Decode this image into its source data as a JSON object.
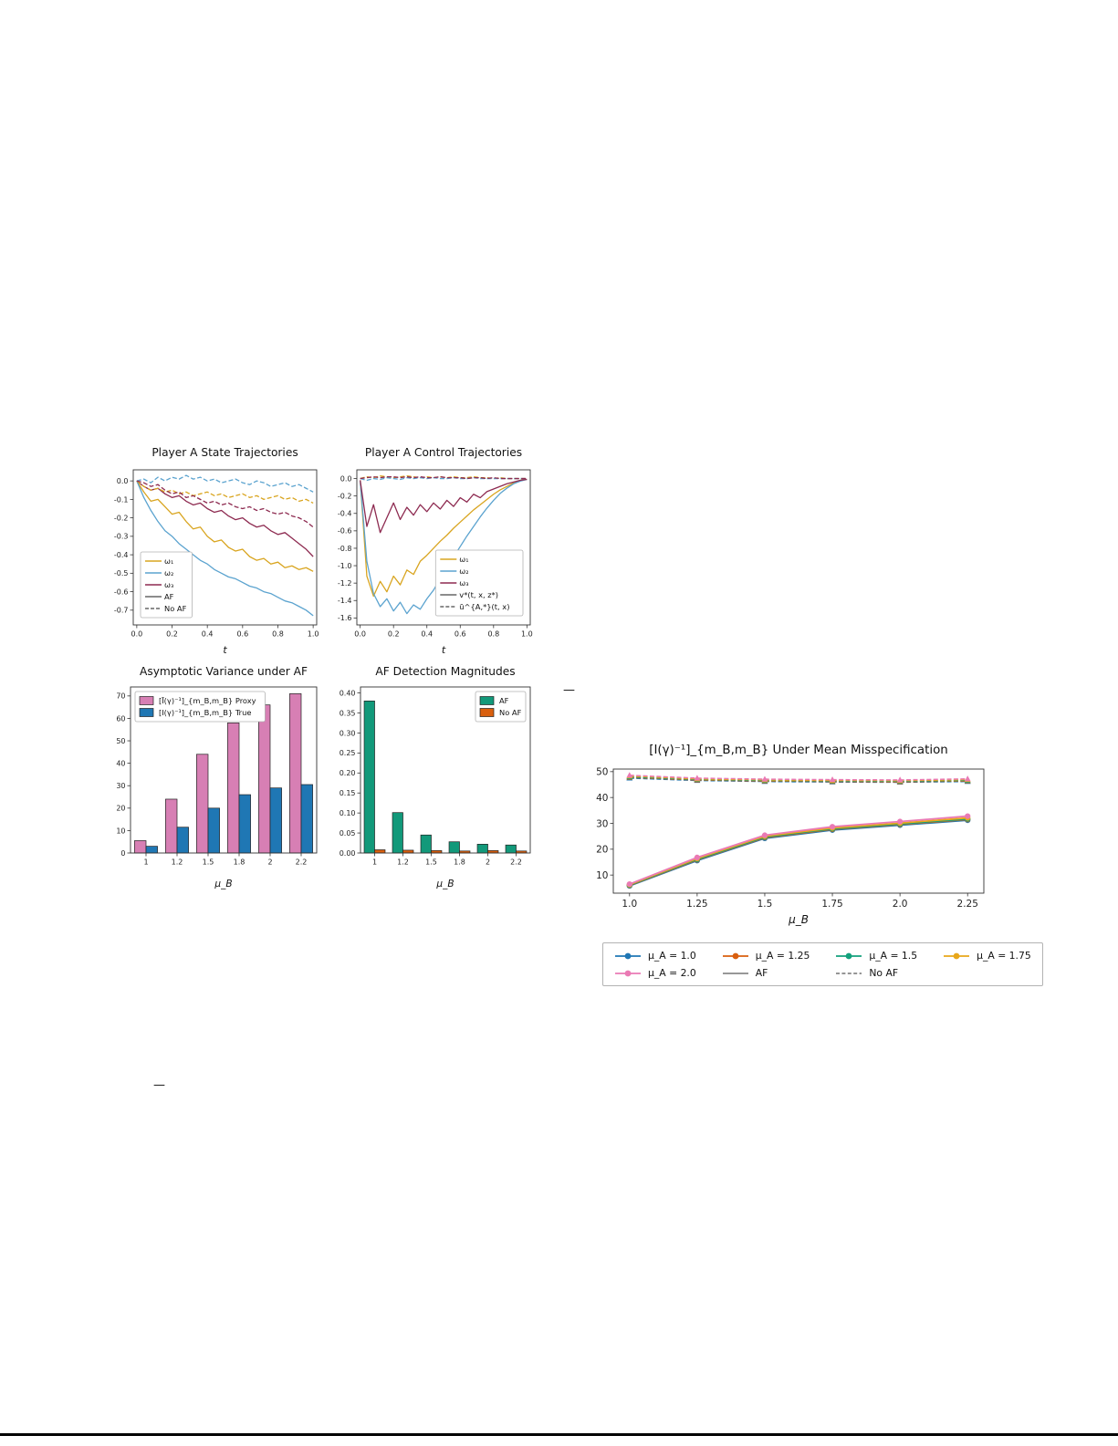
{
  "page": {
    "background": "#ffffff"
  },
  "fragments": [
    {
      "text": "—"
    },
    {
      "text": "—"
    }
  ],
  "chart_data": [
    {
      "type": "line",
      "title": "Player A State Trajectories",
      "xlabel": "t",
      "xlim": [
        -0.02,
        1.02
      ],
      "ylim": [
        -0.78,
        0.06
      ],
      "xticks": [
        0.0,
        0.2,
        0.4,
        0.6,
        0.8,
        1.0
      ],
      "xtick_labels": [
        "0.0",
        "0.2",
        "0.4",
        "0.6",
        "0.8",
        "1.0"
      ],
      "yticks": [
        0.0,
        -0.1,
        -0.2,
        -0.3,
        -0.4,
        -0.5,
        -0.6,
        -0.7
      ],
      "ytick_labels": [
        "0.0",
        "-0.1",
        "-0.2",
        "-0.3",
        "-0.4",
        "-0.5",
        "-0.6",
        "-0.7"
      ],
      "x": [
        0,
        0.04,
        0.08,
        0.12,
        0.16,
        0.2,
        0.24,
        0.28,
        0.32,
        0.36,
        0.4,
        0.44,
        0.48,
        0.52,
        0.56,
        0.6,
        0.64,
        0.68,
        0.72,
        0.76,
        0.8,
        0.84,
        0.88,
        0.92,
        0.96,
        1.0
      ],
      "series": [
        {
          "color": "#d9a520",
          "dash": false,
          "y": [
            0,
            -0.06,
            -0.11,
            -0.1,
            -0.14,
            -0.18,
            -0.17,
            -0.22,
            -0.26,
            -0.25,
            -0.3,
            -0.33,
            -0.32,
            -0.36,
            -0.38,
            -0.37,
            -0.41,
            -0.43,
            -0.42,
            -0.45,
            -0.44,
            -0.47,
            -0.46,
            -0.48,
            -0.47,
            -0.49
          ]
        },
        {
          "color": "#5ba3cf",
          "dash": false,
          "y": [
            0,
            -0.09,
            -0.16,
            -0.22,
            -0.27,
            -0.3,
            -0.34,
            -0.37,
            -0.4,
            -0.43,
            -0.45,
            -0.48,
            -0.5,
            -0.52,
            -0.53,
            -0.55,
            -0.57,
            -0.58,
            -0.6,
            -0.61,
            -0.63,
            -0.65,
            -0.66,
            -0.68,
            -0.7,
            -0.73
          ]
        },
        {
          "color": "#8d2a50",
          "dash": false,
          "y": [
            0,
            -0.03,
            -0.05,
            -0.04,
            -0.07,
            -0.09,
            -0.08,
            -0.11,
            -0.13,
            -0.12,
            -0.15,
            -0.17,
            -0.16,
            -0.19,
            -0.21,
            -0.2,
            -0.23,
            -0.25,
            -0.24,
            -0.27,
            -0.29,
            -0.28,
            -0.31,
            -0.34,
            -0.37,
            -0.41
          ]
        },
        {
          "color": "#d9a520",
          "dash": true,
          "y": [
            0,
            -0.03,
            -0.05,
            -0.04,
            -0.06,
            -0.05,
            -0.07,
            -0.06,
            -0.08,
            -0.07,
            -0.06,
            -0.08,
            -0.07,
            -0.09,
            -0.08,
            -0.07,
            -0.09,
            -0.08,
            -0.1,
            -0.09,
            -0.08,
            -0.1,
            -0.09,
            -0.11,
            -0.1,
            -0.12
          ]
        },
        {
          "color": "#5ba3cf",
          "dash": true,
          "y": [
            0,
            0.01,
            -0.01,
            0.02,
            0,
            0.02,
            0.01,
            0.03,
            0.01,
            0.02,
            0,
            0.01,
            -0.01,
            0,
            0.01,
            -0.01,
            -0.02,
            0,
            -0.01,
            -0.03,
            -0.02,
            -0.01,
            -0.03,
            -0.02,
            -0.04,
            -0.06
          ]
        },
        {
          "color": "#8d2a50",
          "dash": true,
          "y": [
            0,
            -0.01,
            -0.03,
            -0.02,
            -0.05,
            -0.07,
            -0.06,
            -0.09,
            -0.08,
            -0.1,
            -0.12,
            -0.11,
            -0.13,
            -0.12,
            -0.14,
            -0.15,
            -0.14,
            -0.16,
            -0.15,
            -0.17,
            -0.18,
            -0.17,
            -0.19,
            -0.2,
            -0.22,
            -0.25
          ]
        }
      ],
      "legend": {
        "loc": "lower-left",
        "entries": [
          {
            "label": "ω₁",
            "color": "#d9a520",
            "dash": false
          },
          {
            "label": "ω₂",
            "color": "#5ba3cf",
            "dash": false
          },
          {
            "label": "ω₃",
            "color": "#8d2a50",
            "dash": false
          },
          {
            "label": "AF",
            "color": "#666666",
            "dash": false
          },
          {
            "label": "No AF",
            "color": "#666666",
            "dash": true
          }
        ]
      }
    },
    {
      "type": "line",
      "title": "Player A Control Trajectories",
      "xlabel": "t",
      "xlim": [
        -0.02,
        1.02
      ],
      "ylim": [
        -1.68,
        0.1
      ],
      "xticks": [
        0.0,
        0.2,
        0.4,
        0.6,
        0.8,
        1.0
      ],
      "xtick_labels": [
        "0.0",
        "0.2",
        "0.4",
        "0.6",
        "0.8",
        "1.0"
      ],
      "yticks": [
        0.0,
        -0.2,
        -0.4,
        -0.6,
        -0.8,
        -1.0,
        -1.2,
        -1.4,
        -1.6
      ],
      "ytick_labels": [
        "0.0",
        "-0.2",
        "-0.4",
        "-0.6",
        "-0.8",
        "-1.0",
        "-1.2",
        "-1.4",
        "-1.6"
      ],
      "x": [
        0,
        0.04,
        0.08,
        0.12,
        0.16,
        0.2,
        0.24,
        0.28,
        0.32,
        0.36,
        0.4,
        0.44,
        0.48,
        0.52,
        0.56,
        0.6,
        0.64,
        0.68,
        0.72,
        0.76,
        0.8,
        0.84,
        0.88,
        0.92,
        0.96,
        1.0
      ],
      "series": [
        {
          "color": "#d9a520",
          "dash": false,
          "y": [
            -0.02,
            -1.12,
            -1.35,
            -1.18,
            -1.3,
            -1.12,
            -1.22,
            -1.05,
            -1.1,
            -0.95,
            -0.88,
            -0.8,
            -0.72,
            -0.65,
            -0.57,
            -0.5,
            -0.43,
            -0.36,
            -0.3,
            -0.24,
            -0.18,
            -0.13,
            -0.09,
            -0.05,
            -0.02,
            -0.01
          ]
        },
        {
          "color": "#5ba3cf",
          "dash": false,
          "y": [
            -0.03,
            -0.95,
            -1.32,
            -1.47,
            -1.38,
            -1.52,
            -1.42,
            -1.55,
            -1.45,
            -1.5,
            -1.38,
            -1.28,
            -1.15,
            -1.02,
            -0.9,
            -0.78,
            -0.66,
            -0.55,
            -0.44,
            -0.34,
            -0.25,
            -0.17,
            -0.11,
            -0.06,
            -0.03,
            -0.01
          ]
        },
        {
          "color": "#8d2a50",
          "dash": false,
          "y": [
            -0.02,
            -0.55,
            -0.3,
            -0.62,
            -0.45,
            -0.28,
            -0.47,
            -0.33,
            -0.42,
            -0.3,
            -0.38,
            -0.28,
            -0.35,
            -0.25,
            -0.32,
            -0.22,
            -0.27,
            -0.18,
            -0.22,
            -0.15,
            -0.12,
            -0.09,
            -0.06,
            -0.04,
            -0.02,
            -0.01
          ]
        },
        {
          "color": "#d9a520",
          "dash": true,
          "y": [
            0,
            0.02,
            0.01,
            0.03,
            0.02,
            0.01,
            0.02,
            0.03,
            0.02,
            0.01,
            0.02,
            0.01,
            0.02,
            0.01,
            0.02,
            0.01,
            0.01,
            0.02,
            0.01,
            0.01,
            0,
            0.01,
            0,
            0,
            0,
            0
          ]
        },
        {
          "color": "#5ba3cf",
          "dash": true,
          "y": [
            0,
            -0.02,
            0,
            -0.01,
            0.01,
            0,
            -0.01,
            0.01,
            0,
            0.01,
            0,
            0.01,
            0,
            0,
            0.01,
            0,
            0,
            0.01,
            0,
            0,
            0,
            0,
            0,
            0,
            0,
            0
          ]
        },
        {
          "color": "#8d2a50",
          "dash": true,
          "y": [
            0,
            0.01,
            0.02,
            0.01,
            0.02,
            0.02,
            0.01,
            0.02,
            0.01,
            0.02,
            0.01,
            0.01,
            0.02,
            0.01,
            0.01,
            0.01,
            0,
            0.01,
            0.01,
            0,
            0.01,
            0,
            0,
            0,
            0,
            0
          ]
        }
      ],
      "legend": {
        "loc": "lower-right",
        "entries": [
          {
            "label": "ω₁",
            "color": "#d9a520",
            "dash": false
          },
          {
            "label": "ω₂",
            "color": "#5ba3cf",
            "dash": false
          },
          {
            "label": "ω₃",
            "color": "#8d2a50",
            "dash": false
          },
          {
            "label": "v*(t, x, z*)",
            "color": "#666666",
            "dash": false
          },
          {
            "label": "ū^{A,*}(t, x)",
            "color": "#666666",
            "dash": true
          }
        ]
      }
    },
    {
      "type": "bar",
      "title": "Asymptotic Variance under AF",
      "xlabel": "μ_B",
      "categories": [
        "1",
        "1.2",
        "1.5",
        "1.8",
        "2",
        "2.2"
      ],
      "ylim": [
        0,
        74
      ],
      "yticks": [
        0,
        10,
        20,
        30,
        40,
        50,
        60,
        70
      ],
      "ytick_labels": [
        "0",
        "10",
        "20",
        "30",
        "40",
        "50",
        "60",
        "70"
      ],
      "series": [
        {
          "label": "[Ī(γ)⁻¹]_{m_B,m_B} Proxy",
          "color": "#d77fb4",
          "values": [
            5.5,
            24,
            44,
            58,
            66,
            71
          ]
        },
        {
          "label": "[I(γ)⁻¹]_{m_B,m_B} True",
          "color": "#1f77b4",
          "values": [
            3,
            11.5,
            20,
            26,
            29,
            30.5
          ]
        }
      ],
      "legend": {
        "loc": "upper-left"
      }
    },
    {
      "type": "bar",
      "title": "AF Detection Magnitudes",
      "xlabel": "μ_B",
      "categories": [
        "1",
        "1.2",
        "1.5",
        "1.8",
        "2",
        "2.2"
      ],
      "ylim": [
        0,
        0.415
      ],
      "yticks": [
        0.0,
        0.05,
        0.1,
        0.15,
        0.2,
        0.25,
        0.3,
        0.35,
        0.4
      ],
      "ytick_labels": [
        "0.00",
        "0.05",
        "0.10",
        "0.15",
        "0.20",
        "0.25",
        "0.30",
        "0.35",
        "0.40"
      ],
      "series": [
        {
          "label": "AF",
          "color": "#12997a",
          "values": [
            0.38,
            0.101,
            0.045,
            0.028,
            0.022,
            0.02
          ]
        },
        {
          "label": "No AF",
          "color": "#d95f0e",
          "values": [
            0.008,
            0.007,
            0.006,
            0.005,
            0.006,
            0.005
          ]
        }
      ],
      "legend": {
        "loc": "upper-right"
      }
    },
    {
      "type": "line",
      "title": "[I(γ)⁻¹]_{m_B,m_B} Under Mean Misspecification",
      "xlabel": "μ_B",
      "xlim": [
        0.94,
        2.31
      ],
      "ylim": [
        3,
        51
      ],
      "xticks": [
        1.0,
        1.25,
        1.5,
        1.75,
        2.0,
        2.25
      ],
      "xtick_labels": [
        "1.0",
        "1.25",
        "1.5",
        "1.75",
        "2.0",
        "2.25"
      ],
      "yticks": [
        10,
        20,
        30,
        40,
        50
      ],
      "ytick_labels": [
        "10",
        "20",
        "30",
        "40",
        "50"
      ],
      "x": [
        1.0,
        1.25,
        1.5,
        1.75,
        2.0,
        2.25
      ],
      "series": [
        {
          "color": "#1f77b4",
          "dash": false,
          "marker": "o",
          "w": 1.8,
          "y": [
            5.8,
            15.6,
            24.2,
            27.4,
            29.3,
            31.2
          ]
        },
        {
          "color": "#d95f0e",
          "dash": false,
          "marker": "o",
          "w": 1.8,
          "y": [
            6.0,
            15.9,
            24.5,
            27.7,
            29.6,
            31.5
          ]
        },
        {
          "color": "#13a17c",
          "dash": false,
          "marker": "o",
          "w": 1.8,
          "y": [
            6.1,
            16.1,
            24.7,
            27.9,
            29.8,
            31.7
          ]
        },
        {
          "color": "#e8a71a",
          "dash": false,
          "marker": "o",
          "w": 1.8,
          "y": [
            6.3,
            16.4,
            25.0,
            28.2,
            30.1,
            32.1
          ]
        },
        {
          "color": "#ea7ab4",
          "dash": false,
          "marker": "o",
          "w": 1.8,
          "y": [
            6.5,
            16.8,
            25.4,
            28.7,
            30.7,
            32.8
          ]
        },
        {
          "color": "#1f77b4",
          "dash": true,
          "marker": "^",
          "w": 1.5,
          "y": [
            47.5,
            46.6,
            46.2,
            46.0,
            45.9,
            46.2
          ]
        },
        {
          "color": "#d95f0e",
          "dash": true,
          "marker": "^",
          "w": 1.5,
          "y": [
            47.8,
            46.8,
            46.4,
            46.2,
            46.1,
            46.4
          ]
        },
        {
          "color": "#13a17c",
          "dash": true,
          "marker": "^",
          "w": 1.5,
          "y": [
            48.0,
            47.0,
            46.6,
            46.4,
            46.3,
            46.6
          ]
        },
        {
          "color": "#e8a71a",
          "dash": true,
          "marker": "^",
          "w": 1.5,
          "y": [
            48.3,
            47.2,
            46.8,
            46.6,
            46.5,
            46.9
          ]
        },
        {
          "color": "#ea7ab4",
          "dash": true,
          "marker": "^",
          "w": 1.5,
          "y": [
            48.6,
            47.5,
            47.1,
            46.9,
            46.8,
            47.2
          ]
        }
      ],
      "legend": {
        "loc": "below",
        "entries": [
          {
            "label": "μ_A = 1.0",
            "color": "#1f77b4",
            "dash": false,
            "marker": "o"
          },
          {
            "label": "μ_A = 1.25",
            "color": "#d95f0e",
            "dash": false,
            "marker": "o"
          },
          {
            "label": "μ_A = 1.5",
            "color": "#13a17c",
            "dash": false,
            "marker": "o"
          },
          {
            "label": "μ_A = 1.75",
            "color": "#e8a71a",
            "dash": false,
            "marker": "o"
          },
          {
            "label": "μ_A = 2.0",
            "color": "#ea7ab4",
            "dash": false,
            "marker": "o"
          },
          {
            "label": "AF",
            "color": "#888888",
            "dash": false
          },
          {
            "label": "No AF",
            "color": "#888888",
            "dash": true
          }
        ]
      }
    }
  ]
}
